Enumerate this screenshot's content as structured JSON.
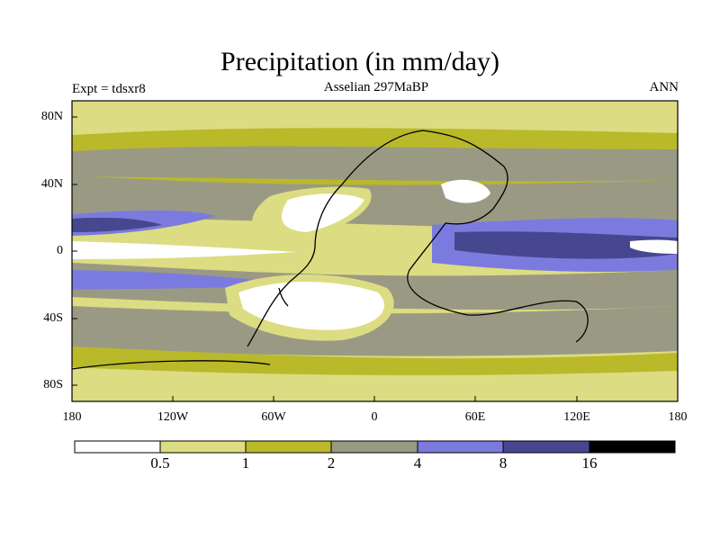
{
  "header": {
    "title": "Precipitation (in mm/day)",
    "experiment": "Expt = tdsxr8",
    "subtitle": "Asselian 297MaBP",
    "season": "ANN"
  },
  "axes": {
    "y_ticks": [
      "80N",
      "40N",
      "0",
      "40S",
      "80S"
    ],
    "x_ticks": [
      "180",
      "120W",
      "60W",
      "0",
      "60E",
      "120E",
      "180"
    ]
  },
  "colorbar": {
    "labels": [
      "0.5",
      "1",
      "2",
      "4",
      "8",
      "16"
    ],
    "colors": [
      "#ffffff",
      "#dcdc82",
      "#b9b92a",
      "#9a9a84",
      "#7b7bdf",
      "#47478f",
      "#000000"
    ]
  },
  "chart_data": {
    "type": "heatmap",
    "title": "Precipitation (in mm/day)",
    "units": "mm/day",
    "levels": [
      0.5,
      1,
      2,
      4,
      8,
      16
    ],
    "lon_range": [
      -180,
      180
    ],
    "lat_range": [
      -90,
      90
    ],
    "xlabel": "",
    "ylabel": ""
  }
}
